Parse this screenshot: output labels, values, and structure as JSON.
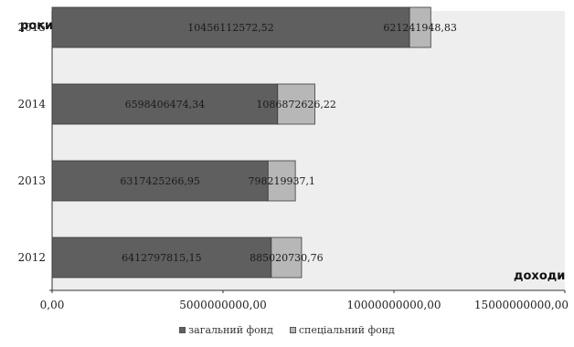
{
  "chart_data": {
    "type": "bar",
    "orientation": "horizontal",
    "stacked": true,
    "categories": [
      "2012",
      "2013",
      "2014",
      "2015"
    ],
    "series": [
      {
        "name": "загальний фонд",
        "color": "#5f5f5f",
        "values": [
          6412797815.15,
          6317425266.95,
          6598406474.34,
          10456112572.52
        ],
        "labels": [
          "6412797815,15",
          "6317425266,95",
          "6598406474,34",
          "10456112572,52"
        ]
      },
      {
        "name": "спеціальний фонд",
        "color": "#b7b7b7",
        "values": [
          885020730.76,
          798219937.1,
          1086872626.22,
          621241948.83
        ],
        "labels": [
          "885020730,76",
          "798219937,1",
          "1086872626,22",
          "621241948,83"
        ]
      }
    ],
    "xlim": [
      0,
      15000000000
    ],
    "xticks": [
      0,
      5000000000,
      10000000000,
      15000000000
    ],
    "xtick_labels": [
      "0,00",
      "5000000000,00",
      "10000000000,00",
      "15000000000,00"
    ],
    "xlabel": "доходи",
    "ylabel": "роки",
    "grid": false,
    "plot_background": "#eeeeee",
    "legend_position": "bottom"
  }
}
